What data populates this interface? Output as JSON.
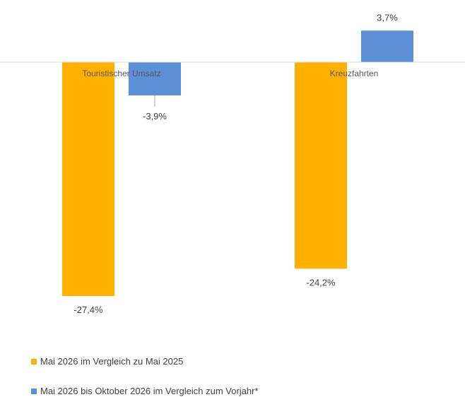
{
  "chart_data": {
    "type": "bar",
    "title": "",
    "xlabel": "",
    "ylabel": "",
    "categories": [
      "Touristischer Umsatz",
      "Kreuzfahrten"
    ],
    "series": [
      {
        "name": "Mai 2026 im Vergleich zu Mai 2025",
        "color": "#FFB000",
        "values": [
          -27.4,
          -24.2
        ],
        "labels": [
          "-27,4%",
          "-24,2%"
        ]
      },
      {
        "name": "Mai 2026 bis Oktober 2026 im Vergleich zum Vorjahr*",
        "color": "#5B8FD6",
        "values": [
          -3.9,
          3.7
        ],
        "labels": [
          "-3,9%",
          "3,7%"
        ]
      }
    ],
    "ylim": [
      -30,
      5
    ],
    "grid": false,
    "legend_position": "bottom-left"
  }
}
